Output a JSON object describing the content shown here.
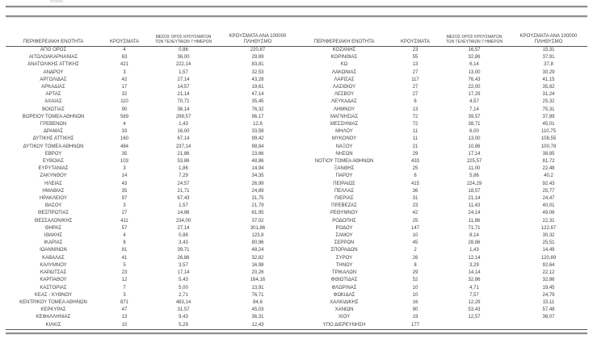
{
  "page": {
    "background": "#ffffff",
    "text_color": "#3f3f3f",
    "rule_gray": "#8f8f8f",
    "rule_dark": "#555555"
  },
  "table": {
    "headers": [
      "ΠΕΡΙΦΕΡΕΙΑΚΗ ΕΝΟΤΗΤΑ",
      "ΚΡΟΥΣΜΑΤΑ",
      "ΜΕΣΟΣ ΟΡΟΣ ΚΡΟΥΣΜΑΤΩΝ\nΤΩΝ ΤΕΛΕΥΤΑΙΩΝ 7 ΗΜΕΡΩΝ",
      "ΚΡΟΥΣΜΑΤΑ ΑΝΑ 100000\nΠΛΗΘΥΣΜΟ"
    ],
    "rows_left": [
      [
        "ΑΓΙΟ ΟΡΟΣ",
        "4",
        "0,86",
        "220,87"
      ],
      [
        "ΑΙΤΩΛΟΑΚΑΡΝΑΝΙΑΣ",
        "63",
        "36,00",
        "29,89"
      ],
      [
        "ΑΝΑΤΟΛΙΚΗΣ ΑΤΤΙΚΗΣ",
        "421",
        "222,14",
        "83,81"
      ],
      [
        "ΑΝΔΡΟΥ",
        "3",
        "1,57",
        "32,53"
      ],
      [
        "ΑΡΓΟΛΙΔΑΣ",
        "42",
        "27,14",
        "43,28"
      ],
      [
        "ΑΡΚΑΔΙΑΣ",
        "17",
        "14,57",
        "19,61"
      ],
      [
        "ΑΡΤΑΣ",
        "32",
        "21,14",
        "47,14"
      ],
      [
        "ΑΧΑΪΑΣ",
        "110",
        "70,71",
        "35,45"
      ],
      [
        "ΒΟΙΩΤΙΑΣ",
        "90",
        "36,14",
        "76,32"
      ],
      [
        "ΒΟΡΕΙΟΥ ΤΟΜΕΑ ΑΘΗΝΩΝ",
        "569",
        "299,57",
        "96,17"
      ],
      [
        "ΓΡΕΒΕΝΩΝ",
        "4",
        "1,43",
        "12,6"
      ],
      [
        "ΔΡΑΜΑΣ",
        "33",
        "16,00",
        "33,58"
      ],
      [
        "ΔΥΤΙΚΗΣ ΑΤΤΙΚΗΣ",
        "160",
        "67,14",
        "99,42"
      ],
      [
        "ΔΥΤΙΚΟΥ ΤΟΜΕΑ ΑΘΗΝΩΝ",
        "484",
        "237,14",
        "98,84"
      ],
      [
        "ΕΒΡΟΥ",
        "35",
        "21,86",
        "23,66"
      ],
      [
        "ΕΥΒΟΙΑΣ",
        "103",
        "53,86",
        "48,86"
      ],
      [
        "ΕΥΡΥΤΑΝΙΑΣ",
        "3",
        "1,86",
        "14,94"
      ],
      [
        "ΖΑΚΥΝΘΟΥ",
        "14",
        "7,29",
        "34,35"
      ],
      [
        "ΗΛΕΙΑΣ",
        "43",
        "24,57",
        "26,99"
      ],
      [
        "ΗΜΑΘΙΑΣ",
        "35",
        "21,71",
        "24,89"
      ],
      [
        "ΗΡΑΚΛΕΙΟΥ",
        "97",
        "67,43",
        "31,75"
      ],
      [
        "ΘΑΣΟΥ",
        "3",
        "1,57",
        "21,79"
      ],
      [
        "ΘΕΣΠΡΩΤΙΑΣ",
        "27",
        "14,86",
        "61,95"
      ],
      [
        "ΘΕΣΣΑΛΟΝΙΚΗΣ",
        "411",
        "234,00",
        "37,02"
      ],
      [
        "ΘΗΡΑΣ",
        "57",
        "27,14",
        "301,86"
      ],
      [
        "ΙΘΑΚΗΣ",
        "4",
        "0,86",
        "123,8"
      ],
      [
        "ΙΚΑΡΙΑΣ",
        "8",
        "3,43",
        "80,96"
      ],
      [
        "ΙΩΑΝΝΙΝΩΝ",
        "81",
        "39,71",
        "48,24"
      ],
      [
        "ΚΑΒΑΛΑΣ",
        "41",
        "26,86",
        "32,82"
      ],
      [
        "ΚΑΛΥΜΝΟΥ",
        "5",
        "3,57",
        "16,98"
      ],
      [
        "ΚΑΡΔΙΤΣΑΣ",
        "23",
        "17,14",
        "20,26"
      ],
      [
        "ΚΑΡΠΑΘΟΥ",
        "12",
        "5,43",
        "164,16"
      ],
      [
        "ΚΑΣΤΟΡΙΑΣ",
        "7",
        "5,00",
        "13,91"
      ],
      [
        "ΚΕΑΣ - ΚΥΘΝΟΥ",
        "3",
        "2,71",
        "76,71"
      ],
      [
        "ΚΕΝΤΡΙΚΟΥ ΤΟΜΕΑ ΑΘΗΝΩΝ",
        "871",
        "483,14",
        "84,6"
      ],
      [
        "ΚΕΡΚΥΡΑΣ",
        "47",
        "31,57",
        "45,03"
      ],
      [
        "ΚΕΦΑΛΛΗΝΙΑΣ",
        "13",
        "9,43",
        "36,31"
      ],
      [
        "ΚΙΛΚΙΣ",
        "10",
        "5,29",
        "12,43"
      ]
    ],
    "rows_right": [
      [
        "ΚΟΖΑΝΗΣ",
        "23",
        "16,57",
        "15,31"
      ],
      [
        "ΚΟΡΙΝΘΙΑΣ",
        "55",
        "32,86",
        "37,91"
      ],
      [
        "ΚΩ",
        "13",
        "6,14",
        "37,8"
      ],
      [
        "ΛΑΚΩΝΙΑΣ",
        "27",
        "13,00",
        "30,29"
      ],
      [
        "ΛΑΡΙΣΑΣ",
        "117",
        "76,43",
        "41,15"
      ],
      [
        "ΛΑΣΙΘΙΟΥ",
        "27",
        "22,00",
        "35,82"
      ],
      [
        "ΛΕΣΒΟΥ",
        "27",
        "17,29",
        "31,24"
      ],
      [
        "ΛΕΥΚΑΔΑΣ",
        "6",
        "4,57",
        "25,32"
      ],
      [
        "ΛΗΜΝΟΥ",
        "13",
        "7,14",
        "75,31"
      ],
      [
        "ΜΑΓΝΗΣΙΑΣ",
        "72",
        "39,57",
        "37,89"
      ],
      [
        "ΜΕΣΣΗΝΙΑΣ",
        "72",
        "38,71",
        "45,01"
      ],
      [
        "ΜΗΛΟΥ",
        "11",
        "6,00",
        "110,75"
      ],
      [
        "ΜΥΚΟΝΟΥ",
        "11",
        "13,00",
        "108,55"
      ],
      [
        "ΝΑΞΟΥ",
        "21",
        "10,86",
        "100,78"
      ],
      [
        "ΝΗΣΩΝ",
        "29",
        "17,14",
        "38,85"
      ],
      [
        "ΝΟΤΙΟΥ ΤΟΜΕΑ ΑΘΗΝΩΝ",
        "433",
        "225,57",
        "81,72"
      ],
      [
        "ΞΑΝΘΗΣ",
        "25",
        "11,00",
        "22,48"
      ],
      [
        "ΠΑΡΟΥ",
        "6",
        "5,86",
        "40,2"
      ],
      [
        "ΠΕΙΡΑΙΩΣ",
        "415",
        "224,29",
        "92,43"
      ],
      [
        "ΠΕΛΛΑΣ",
        "36",
        "18,57",
        "25,77"
      ],
      [
        "ΠΙΕΡΙΑΣ",
        "31",
        "21,14",
        "24,47"
      ],
      [
        "ΠΡΕΒΕΖΑΣ",
        "23",
        "11,43",
        "40,01"
      ],
      [
        "ΡΕΘΥΜΝΟΥ",
        "42",
        "24,14",
        "49,06"
      ],
      [
        "ΡΟΔΟΠΗΣ",
        "25",
        "11,86",
        "22,31"
      ],
      [
        "ΡΟΔΟΥ",
        "147",
        "71,71",
        "122,67"
      ],
      [
        "ΣΑΜΟΥ",
        "10",
        "8,14",
        "30,32"
      ],
      [
        "ΣΕΡΡΩΝ",
        "45",
        "28,86",
        "25,51"
      ],
      [
        "ΣΠΟΡΑΔΩΝ",
        "2",
        "1,43",
        "14,49"
      ],
      [
        "ΣΥΡΟΥ",
        "26",
        "12,14",
        "120,89"
      ],
      [
        "ΤΗΝΟΥ",
        "8",
        "3,29",
        "92,64"
      ],
      [
        "ΤΡΙΚΑΛΩΝ",
        "29",
        "14,14",
        "22,12"
      ],
      [
        "ΦΘΙΩΤΙΔΑΣ",
        "52",
        "32,86",
        "32,86"
      ],
      [
        "ΦΛΩΡΙΝΑΣ",
        "10",
        "4,71",
        "19,45"
      ],
      [
        "ΦΩΚΙΔΑΣ",
        "10",
        "7,57",
        "24,79"
      ],
      [
        "ΧΑΛΚΙΔΙΚΗΣ",
        "16",
        "12,29",
        "15,11"
      ],
      [
        "ΧΑΝΙΩΝ",
        "90",
        "53,43",
        "57,48"
      ],
      [
        "ΧΙΟΥ",
        "19",
        "12,57",
        "36,07"
      ],
      [
        "ΥΠΟ ΔΙΕΡΕΥΝΗΣΗ",
        "177",
        "",
        ""
      ]
    ]
  }
}
